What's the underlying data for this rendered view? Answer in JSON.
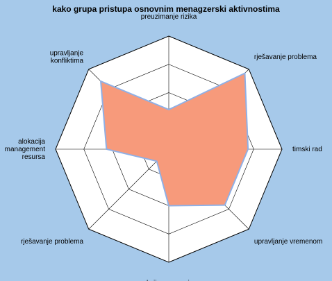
{
  "chart_data": {
    "type": "radar",
    "title": "kako grupa pristupa osnovnim menagzerski aktivnostima",
    "categories": [
      "preuzimanje rizika",
      "rješavanje problema",
      "timski rad",
      "upravljanje vremenom",
      "reakcija na promjene",
      "rješavanje problema",
      "alokacija\nmanagement\nresursa",
      "upravljanje\nkonfliktima"
    ],
    "series": [
      {
        "values": [
          0.35,
          0.95,
          0.7,
          0.7,
          0.5,
          0.15,
          0.55,
          0.85
        ]
      }
    ],
    "rlim": [
      0,
      1
    ],
    "rings": 4,
    "grid": true,
    "fill_color": "#f79a7b",
    "stroke_color": "#8fb0e6",
    "background_color": "#a6c9ea"
  }
}
